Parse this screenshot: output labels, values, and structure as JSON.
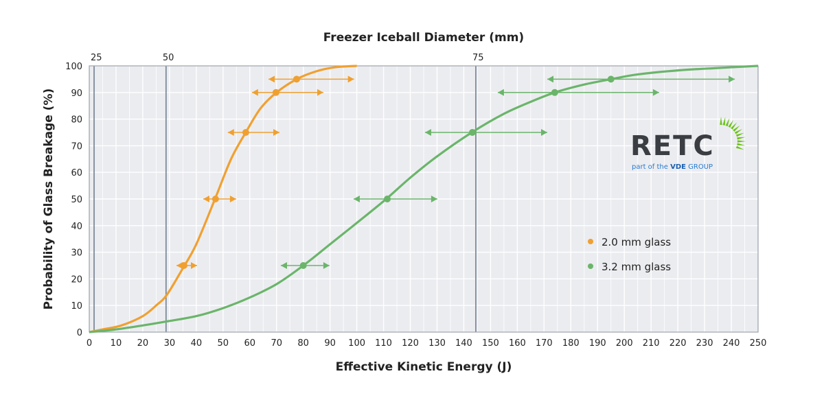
{
  "chart_data": {
    "type": "line",
    "title": "Freezer Iceball Diameter (mm)",
    "xlabel": "Effective Kinetic Energy (J)",
    "ylabel": "Probability of Glass Breakage (%)",
    "xlim": [
      0,
      250
    ],
    "ylim": [
      0,
      100
    ],
    "xticks": [
      0,
      10,
      20,
      30,
      40,
      50,
      60,
      70,
      80,
      90,
      100,
      110,
      120,
      130,
      140,
      150,
      160,
      170,
      180,
      190,
      200,
      210,
      220,
      230,
      240,
      250
    ],
    "yticks": [
      0,
      10,
      20,
      30,
      40,
      50,
      60,
      70,
      80,
      90,
      100
    ],
    "grid": true,
    "legend_position": "bottom-right",
    "top_axis": {
      "label": "Freezer Iceball Diameter (mm)",
      "ticks": [
        {
          "label": "25",
          "energy_J": 1.8
        },
        {
          "label": "50",
          "energy_J": 28.7
        },
        {
          "label": "75",
          "energy_J": 144.5
        }
      ]
    },
    "series": [
      {
        "name": "2.0 mm glass",
        "color": "#f0a030",
        "curve": [
          [
            0,
            0
          ],
          [
            5,
            1
          ],
          [
            12,
            2.5
          ],
          [
            20,
            6
          ],
          [
            25,
            10
          ],
          [
            29,
            14
          ],
          [
            35,
            24
          ],
          [
            40,
            33
          ],
          [
            47,
            50
          ],
          [
            53,
            65
          ],
          [
            58.5,
            75
          ],
          [
            64,
            84
          ],
          [
            70,
            90
          ],
          [
            77.5,
            95
          ],
          [
            85,
            98
          ],
          [
            92,
            99.5
          ],
          [
            100,
            100
          ]
        ],
        "points": [
          {
            "x": 35.4,
            "y": 25,
            "xmin": 32.6,
            "xmax": 40.3
          },
          {
            "x": 47.2,
            "y": 50,
            "xmin": 42.6,
            "xmax": 54.9
          },
          {
            "x": 58.5,
            "y": 75,
            "xmin": 51.8,
            "xmax": 71.1
          },
          {
            "x": 69.8,
            "y": 90,
            "xmin": 60.8,
            "xmax": 87.5
          },
          {
            "x": 77.5,
            "y": 95,
            "xmin": 67.0,
            "xmax": 99.0
          }
        ]
      },
      {
        "name": "3.2 mm glass",
        "color": "#6ab56a",
        "curve": [
          [
            0,
            0
          ],
          [
            10,
            1
          ],
          [
            20,
            2.5
          ],
          [
            29,
            4
          ],
          [
            40,
            6
          ],
          [
            50,
            9
          ],
          [
            60,
            13
          ],
          [
            70,
            18
          ],
          [
            80,
            25
          ],
          [
            90,
            33
          ],
          [
            100,
            41
          ],
          [
            111,
            50
          ],
          [
            120,
            58
          ],
          [
            130,
            66
          ],
          [
            143,
            75
          ],
          [
            155,
            82
          ],
          [
            165,
            86.5
          ],
          [
            174,
            90
          ],
          [
            185,
            93
          ],
          [
            195,
            95
          ],
          [
            205,
            96.8
          ],
          [
            220,
            98.3
          ],
          [
            235,
            99.2
          ],
          [
            250,
            100
          ]
        ],
        "points": [
          {
            "x": 80,
            "y": 25,
            "xmin": 71.6,
            "xmax": 89.8
          },
          {
            "x": 111.4,
            "y": 50,
            "xmin": 98.8,
            "xmax": 130.1
          },
          {
            "x": 143.2,
            "y": 75,
            "xmin": 125.5,
            "xmax": 171.2
          },
          {
            "x": 174,
            "y": 90,
            "xmin": 152.7,
            "xmax": 213
          },
          {
            "x": 195,
            "y": 95,
            "xmin": 171.2,
            "xmax": 241.3
          }
        ]
      }
    ]
  },
  "logo": {
    "name": "RETC",
    "tagline_pre": "part of the ",
    "tagline_bold": "VDE",
    "tagline_post": " GROUP"
  }
}
